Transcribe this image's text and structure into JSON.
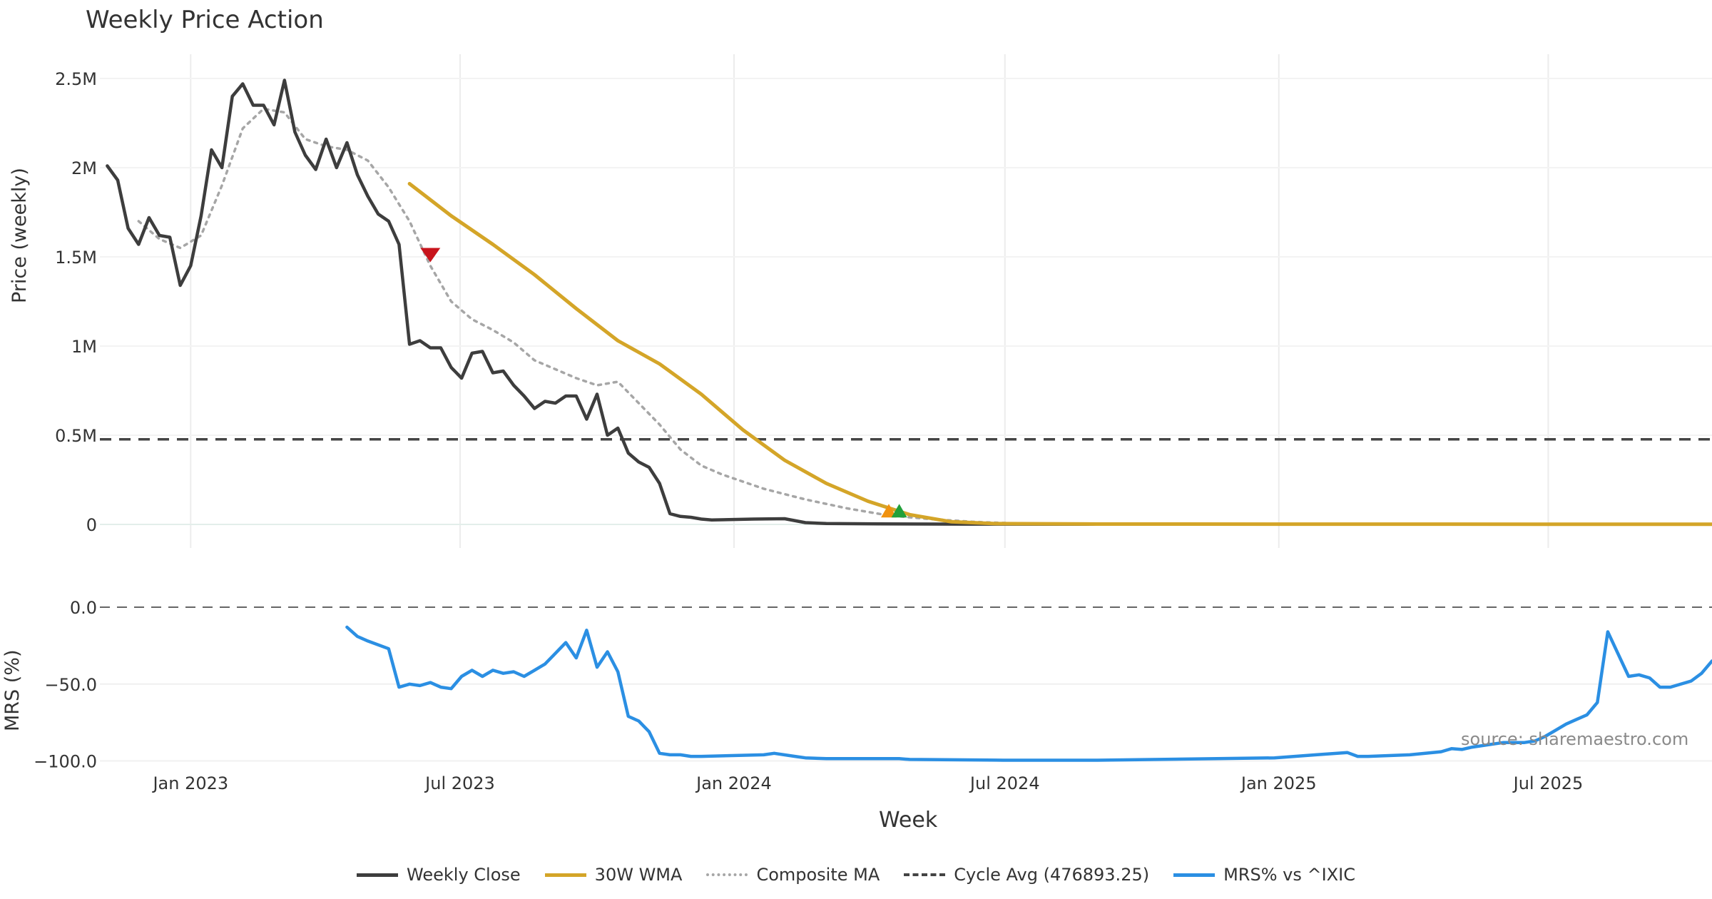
{
  "page": {
    "title": "Weekly Price Action",
    "source": "source: sharemaestro.com"
  },
  "legend": {
    "weekly_close": "Weekly Close",
    "wma": "30W WMA",
    "composite": "Composite MA",
    "cycle": "Cycle Avg (476893.25)",
    "mrs": "MRS% vs ^IXIC"
  },
  "colors": {
    "weekly_close": "#3d3d3d",
    "wma": "#d4a528",
    "composite": "#a6a6a6",
    "cycle": "#444444",
    "mrs": "#2b8fe3",
    "marker_down": "#c8141c",
    "marker_up_orange": "#f0920f",
    "marker_up_green": "#22a03a"
  },
  "chart_data": [
    {
      "type": "line",
      "ylabel": "Price (weekly)",
      "ylim": [
        0,
        2600000
      ],
      "y_ticks": [
        0,
        500000,
        1000000,
        1500000,
        2000000,
        2500000
      ],
      "y_tick_labels": [
        "0",
        "0.5M",
        "1M",
        "1.5M",
        "2M",
        "2.5M"
      ],
      "grid": true,
      "cycle_avg": 476893.25,
      "series": [
        {
          "name": "Weekly Close",
          "points": [
            [
              "2022-11-06",
              2010000
            ],
            [
              "2022-11-13",
              1930000
            ],
            [
              "2022-11-20",
              1660000
            ],
            [
              "2022-11-27",
              1570000
            ],
            [
              "2022-12-04",
              1720000
            ],
            [
              "2022-12-11",
              1620000
            ],
            [
              "2022-12-18",
              1610000
            ],
            [
              "2022-12-25",
              1340000
            ],
            [
              "2023-01-01",
              1450000
            ],
            [
              "2023-01-08",
              1730000
            ],
            [
              "2023-01-15",
              2100000
            ],
            [
              "2023-01-22",
              2000000
            ],
            [
              "2023-01-29",
              2400000
            ],
            [
              "2023-02-05",
              2470000
            ],
            [
              "2023-02-12",
              2350000
            ],
            [
              "2023-02-19",
              2350000
            ],
            [
              "2023-02-26",
              2240000
            ],
            [
              "2023-03-05",
              2490000
            ],
            [
              "2023-03-12",
              2200000
            ],
            [
              "2023-03-19",
              2070000
            ],
            [
              "2023-03-26",
              1990000
            ],
            [
              "2023-04-02",
              2160000
            ],
            [
              "2023-04-09",
              2000000
            ],
            [
              "2023-04-16",
              2140000
            ],
            [
              "2023-04-23",
              1960000
            ],
            [
              "2023-04-30",
              1840000
            ],
            [
              "2023-05-07",
              1740000
            ],
            [
              "2023-05-14",
              1700000
            ],
            [
              "2023-05-21",
              1570000
            ],
            [
              "2023-05-28",
              1010000
            ],
            [
              "2023-06-04",
              1030000
            ],
            [
              "2023-06-11",
              990000
            ],
            [
              "2023-06-18",
              990000
            ],
            [
              "2023-06-25",
              880000
            ],
            [
              "2023-07-02",
              820000
            ],
            [
              "2023-07-09",
              960000
            ],
            [
              "2023-07-16",
              970000
            ],
            [
              "2023-07-23",
              850000
            ],
            [
              "2023-07-30",
              860000
            ],
            [
              "2023-08-06",
              780000
            ],
            [
              "2023-08-13",
              720000
            ],
            [
              "2023-08-20",
              650000
            ],
            [
              "2023-08-27",
              690000
            ],
            [
              "2023-09-03",
              680000
            ],
            [
              "2023-09-10",
              720000
            ],
            [
              "2023-09-17",
              720000
            ],
            [
              "2023-09-24",
              590000
            ],
            [
              "2023-10-01",
              730000
            ],
            [
              "2023-10-08",
              500000
            ],
            [
              "2023-10-15",
              540000
            ],
            [
              "2023-10-22",
              400000
            ],
            [
              "2023-10-29",
              350000
            ],
            [
              "2023-11-05",
              320000
            ],
            [
              "2023-11-12",
              230000
            ],
            [
              "2023-11-19",
              60000
            ],
            [
              "2023-11-26",
              45000
            ],
            [
              "2023-12-03",
              40000
            ],
            [
              "2023-12-10",
              30000
            ],
            [
              "2023-12-17",
              25000
            ],
            [
              "2024-01-14",
              30000
            ],
            [
              "2024-02-04",
              32000
            ],
            [
              "2024-02-18",
              10000
            ],
            [
              "2024-03-03",
              5000
            ],
            [
              "2024-04-07",
              3000
            ],
            [
              "2024-06-02",
              1500
            ],
            [
              "2024-09-01",
              1000
            ],
            [
              "2025-01-05",
              800
            ],
            [
              "2025-10-19",
              700
            ]
          ]
        },
        {
          "name": "30W WMA",
          "points": [
            [
              "2023-05-28",
              1910000
            ],
            [
              "2023-06-25",
              1730000
            ],
            [
              "2023-07-23",
              1570000
            ],
            [
              "2023-08-20",
              1400000
            ],
            [
              "2023-09-17",
              1210000
            ],
            [
              "2023-10-15",
              1030000
            ],
            [
              "2023-11-12",
              900000
            ],
            [
              "2023-12-10",
              730000
            ],
            [
              "2024-01-07",
              530000
            ],
            [
              "2024-02-04",
              360000
            ],
            [
              "2024-03-03",
              230000
            ],
            [
              "2024-03-31",
              130000
            ],
            [
              "2024-04-28",
              55000
            ],
            [
              "2024-05-26",
              15000
            ],
            [
              "2024-06-23",
              5000
            ],
            [
              "2024-09-01",
              2000
            ],
            [
              "2025-10-19",
              1000
            ]
          ]
        },
        {
          "name": "Composite MA",
          "points": [
            [
              "2022-11-27",
              1700000
            ],
            [
              "2022-12-11",
              1600000
            ],
            [
              "2022-12-25",
              1550000
            ],
            [
              "2023-01-08",
              1620000
            ],
            [
              "2023-01-22",
              1900000
            ],
            [
              "2023-02-05",
              2220000
            ],
            [
              "2023-02-19",
              2330000
            ],
            [
              "2023-03-05",
              2310000
            ],
            [
              "2023-03-19",
              2160000
            ],
            [
              "2023-04-02",
              2120000
            ],
            [
              "2023-04-16",
              2100000
            ],
            [
              "2023-04-30",
              2040000
            ],
            [
              "2023-05-14",
              1890000
            ],
            [
              "2023-05-28",
              1700000
            ],
            [
              "2023-06-11",
              1450000
            ],
            [
              "2023-06-25",
              1250000
            ],
            [
              "2023-07-09",
              1150000
            ],
            [
              "2023-07-23",
              1090000
            ],
            [
              "2023-08-06",
              1020000
            ],
            [
              "2023-08-20",
              920000
            ],
            [
              "2023-09-03",
              870000
            ],
            [
              "2023-09-17",
              820000
            ],
            [
              "2023-10-01",
              780000
            ],
            [
              "2023-10-15",
              800000
            ],
            [
              "2023-10-29",
              680000
            ],
            [
              "2023-11-12",
              560000
            ],
            [
              "2023-11-26",
              420000
            ],
            [
              "2023-12-10",
              330000
            ],
            [
              "2023-12-24",
              280000
            ],
            [
              "2024-01-21",
              200000
            ],
            [
              "2024-02-18",
              140000
            ],
            [
              "2024-03-17",
              90000
            ],
            [
              "2024-04-14",
              50000
            ],
            [
              "2024-05-12",
              30000
            ],
            [
              "2024-06-09",
              15000
            ],
            [
              "2024-07-07",
              6000
            ],
            [
              "2024-09-01",
              2000
            ],
            [
              "2025-10-19",
              1000
            ]
          ]
        }
      ],
      "markers": [
        {
          "type": "sell",
          "date": "2023-06-11",
          "value": 1510000
        },
        {
          "type": "buy",
          "date": "2024-04-14",
          "value": 75000
        },
        {
          "type": "buy",
          "date": "2024-04-21",
          "value": 75000
        }
      ]
    },
    {
      "type": "line",
      "ylabel": "MRS (%)",
      "xlabel": "Week",
      "ylim": [
        -103,
        0
      ],
      "y_ticks": [
        0,
        -50,
        -100
      ],
      "y_tick_labels": [
        "0.0",
        "−50.0",
        "−100.0"
      ],
      "x_ticks": [
        "2023-01-01",
        "2023-07-01",
        "2024-01-01",
        "2024-07-01",
        "2025-01-01",
        "2025-07-01"
      ],
      "x_tick_labels": [
        "Jan 2023",
        "Jul 2023",
        "Jan 2024",
        "Jul 2024",
        "Jan 2025",
        "Jul 2025"
      ],
      "x_range": [
        "2022-11-01",
        "2025-10-19"
      ],
      "series": [
        {
          "name": "MRS% vs ^IXIC",
          "points": [
            [
              "2023-04-16",
              -13
            ],
            [
              "2023-04-23",
              -19
            ],
            [
              "2023-04-30",
              -22
            ],
            [
              "2023-05-14",
              -27
            ],
            [
              "2023-05-21",
              -52
            ],
            [
              "2023-05-28",
              -50
            ],
            [
              "2023-06-04",
              -51
            ],
            [
              "2023-06-11",
              -49
            ],
            [
              "2023-06-18",
              -52
            ],
            [
              "2023-06-25",
              -53
            ],
            [
              "2023-07-02",
              -45
            ],
            [
              "2023-07-09",
              -41
            ],
            [
              "2023-07-16",
              -45
            ],
            [
              "2023-07-23",
              -41
            ],
            [
              "2023-07-30",
              -43
            ],
            [
              "2023-08-06",
              -42
            ],
            [
              "2023-08-13",
              -45
            ],
            [
              "2023-08-20",
              -41
            ],
            [
              "2023-08-27",
              -37
            ],
            [
              "2023-09-03",
              -30
            ],
            [
              "2023-09-10",
              -23
            ],
            [
              "2023-09-17",
              -33
            ],
            [
              "2023-09-24",
              -15
            ],
            [
              "2023-10-01",
              -39
            ],
            [
              "2023-10-08",
              -29
            ],
            [
              "2023-10-15",
              -42
            ],
            [
              "2023-10-22",
              -71
            ],
            [
              "2023-10-29",
              -74
            ],
            [
              "2023-11-05",
              -81
            ],
            [
              "2023-11-12",
              -95
            ],
            [
              "2023-11-19",
              -96
            ],
            [
              "2023-11-26",
              -96
            ],
            [
              "2023-12-03",
              -97
            ],
            [
              "2023-12-10",
              -97
            ],
            [
              "2024-01-21",
              -96
            ],
            [
              "2024-01-28",
              -95
            ],
            [
              "2024-02-11",
              -97
            ],
            [
              "2024-02-18",
              -98
            ],
            [
              "2024-03-03",
              -98.5
            ],
            [
              "2024-04-21",
              -98.5
            ],
            [
              "2024-04-28",
              -99
            ],
            [
              "2024-06-30",
              -99.5
            ],
            [
              "2024-09-01",
              -99.5
            ],
            [
              "2024-12-29",
              -98
            ],
            [
              "2025-01-26",
              -96
            ],
            [
              "2025-02-16",
              -94.5
            ],
            [
              "2025-02-23",
              -97
            ],
            [
              "2025-03-02",
              -97
            ],
            [
              "2025-03-30",
              -96
            ],
            [
              "2025-04-20",
              -94
            ],
            [
              "2025-04-27",
              -92
            ],
            [
              "2025-05-04",
              -92.5
            ],
            [
              "2025-05-11",
              -91
            ],
            [
              "2025-05-25",
              -89
            ],
            [
              "2025-06-01",
              -88
            ],
            [
              "2025-06-08",
              -88
            ],
            [
              "2025-06-15",
              -88
            ],
            [
              "2025-06-22",
              -87
            ],
            [
              "2025-06-29",
              -84
            ],
            [
              "2025-07-06",
              -80
            ],
            [
              "2025-07-13",
              -76
            ],
            [
              "2025-07-20",
              -73
            ],
            [
              "2025-07-27",
              -70
            ],
            [
              "2025-08-03",
              -62
            ],
            [
              "2025-08-10",
              -16
            ],
            [
              "2025-08-24",
              -45
            ],
            [
              "2025-08-31",
              -44
            ],
            [
              "2025-09-07",
              -46
            ],
            [
              "2025-09-14",
              -52
            ],
            [
              "2025-09-21",
              -52
            ],
            [
              "2025-10-05",
              -48
            ],
            [
              "2025-10-12",
              -43
            ],
            [
              "2025-10-19",
              -35
            ]
          ]
        }
      ]
    }
  ]
}
